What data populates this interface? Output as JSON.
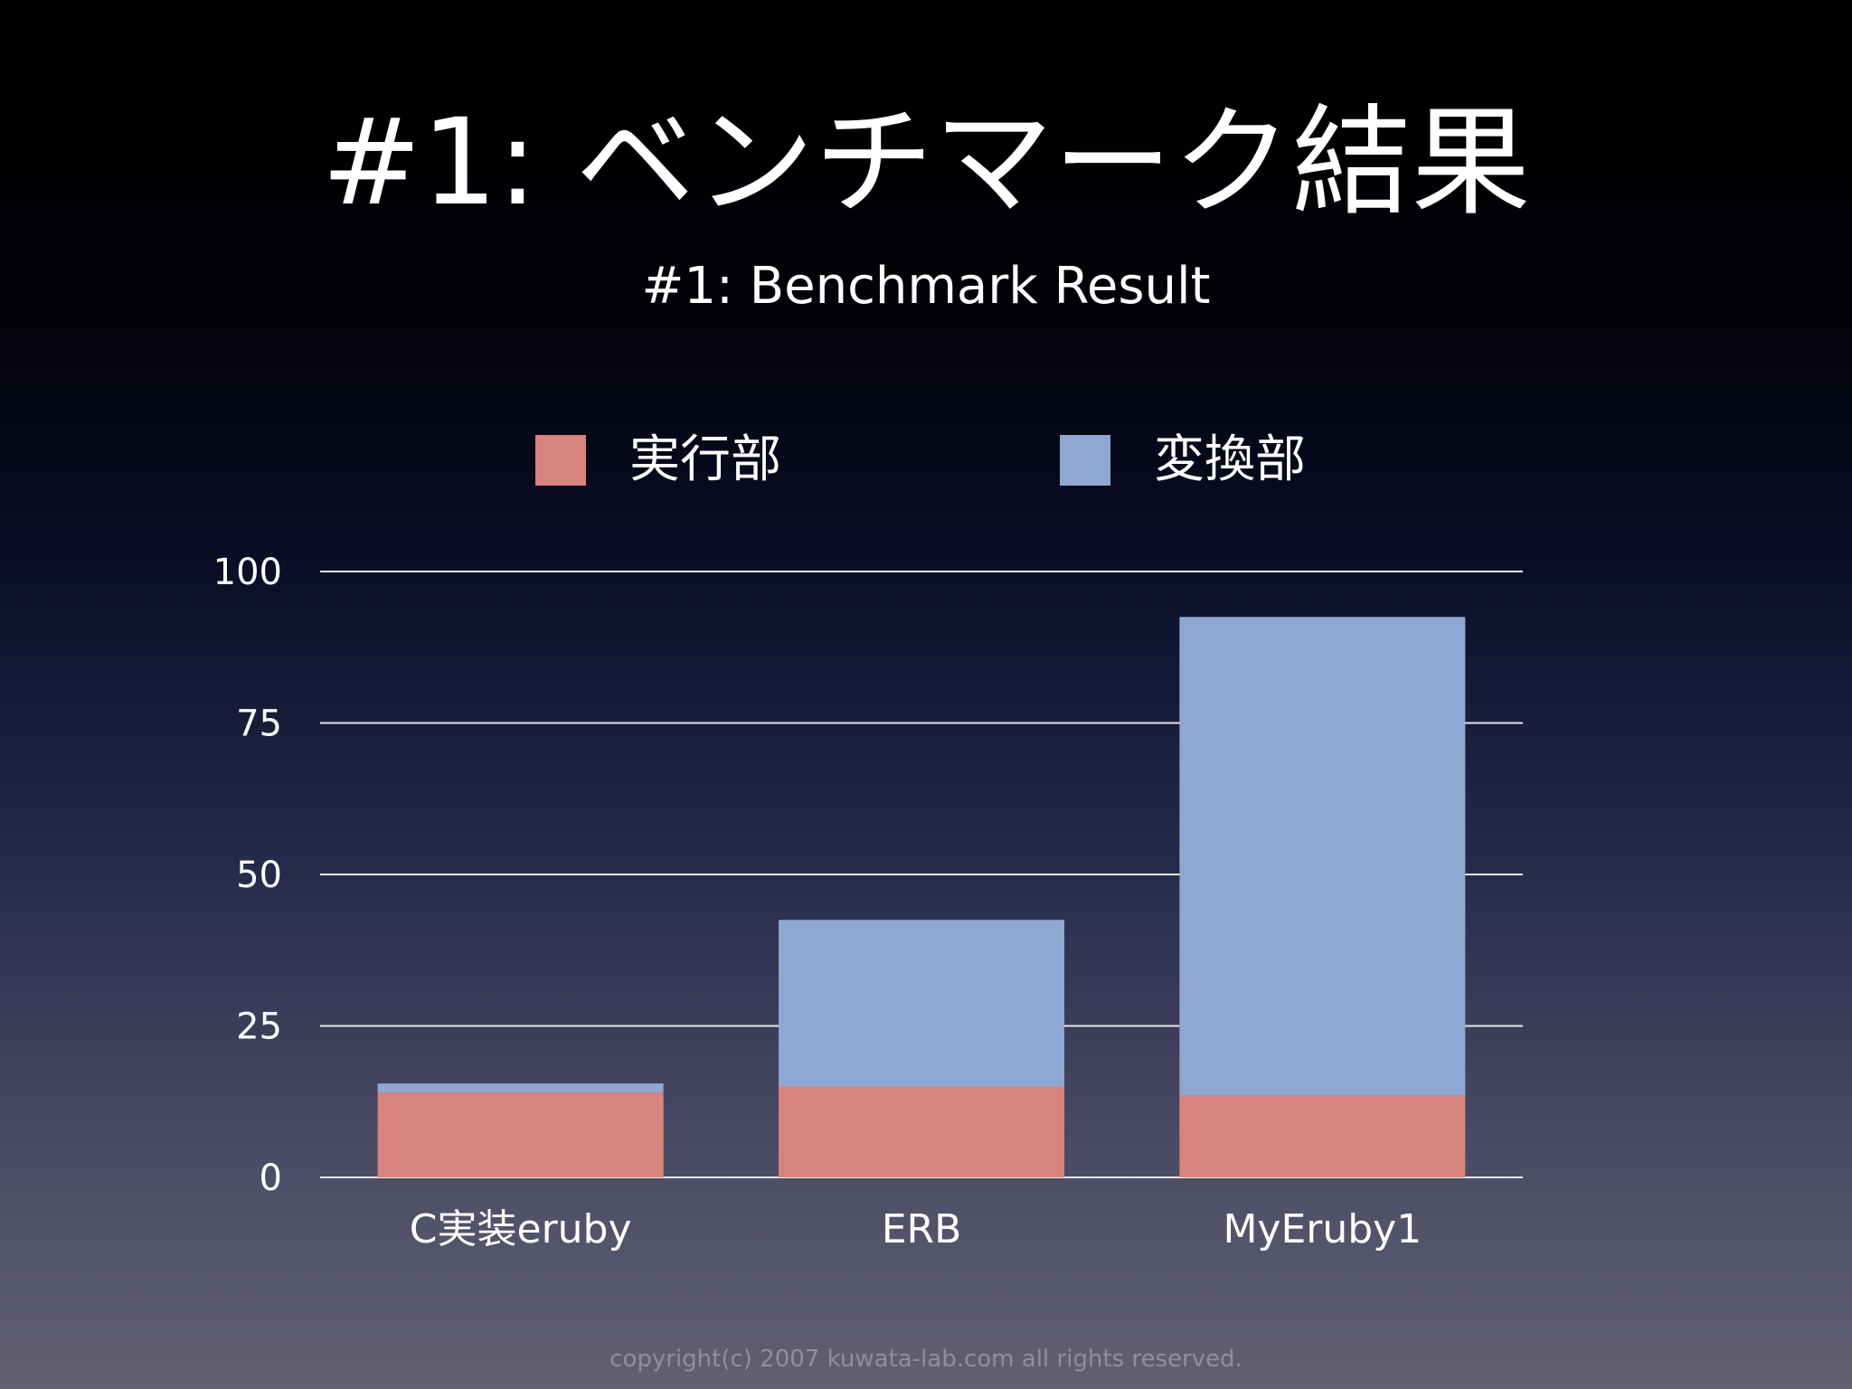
{
  "title": "#1: ベンチマーク結果",
  "subtitle": "#1: Benchmark Result",
  "copyright": "copyright(c) 2007 kuwata-lab.com all rights reserved.",
  "colors": {
    "series_exec": "#d9837f",
    "series_convert": "#8fa7d1",
    "grid": "#e8e8ee",
    "text": "#ffffff",
    "copyright": "#8f8f9e"
  },
  "chart_data": {
    "type": "bar",
    "stacked": true,
    "categories": [
      "C実装eruby",
      "ERB",
      "MyEruby1"
    ],
    "series": [
      {
        "name": "実行部",
        "values": [
          14,
          15,
          13.5
        ]
      },
      {
        "name": "変換部",
        "values": [
          1.5,
          27.5,
          79
        ]
      }
    ],
    "ylim": [
      0,
      100
    ],
    "yticks": [
      "0",
      "25",
      "50",
      "75",
      "100"
    ],
    "ytick_values": [
      0,
      25,
      50,
      75,
      100
    ],
    "grid": true,
    "legend": "top"
  }
}
